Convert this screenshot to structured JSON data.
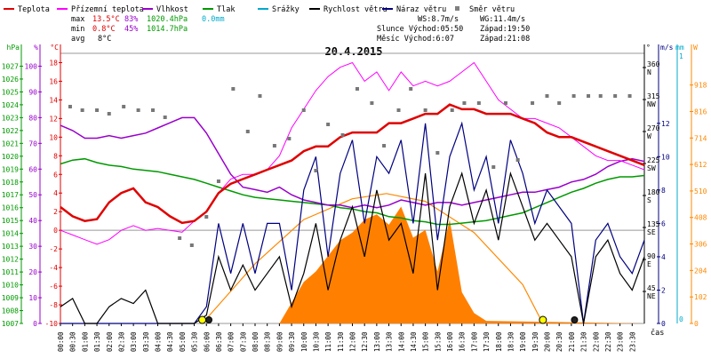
{
  "legend": [
    {
      "label": "Teplota",
      "color": "#e00000",
      "kind": "line"
    },
    {
      "label": "Přízemní teplota",
      "color": "#ff00ff",
      "kind": "line"
    },
    {
      "label": "Vlhkost",
      "color": "#9900cc",
      "kind": "line"
    },
    {
      "label": "Tlak",
      "color": "#009900",
      "kind": "line"
    },
    {
      "label": "Srážky",
      "color": "#00aacc",
      "kind": "line"
    },
    {
      "label": "Rychlost větru",
      "color": "#000000",
      "kind": "line"
    },
    {
      "label": "Náraz větru",
      "color": "#000080",
      "kind": "line"
    },
    {
      "label": "Směr větru",
      "color": "#808080",
      "kind": "dot"
    }
  ],
  "stats": {
    "max_label": "max",
    "max_temp": "13.5°C",
    "max_hum": "83%",
    "max_press": "1020.4hPa",
    "max_rain": "0.0mm",
    "min_label": "min",
    "min_temp": "0.8°C",
    "min_hum": "45%",
    "min_press": "1014.7hPa",
    "avg_label": "avg",
    "avg_temp": "8°C"
  },
  "wind_info": {
    "ws": "WS:8.7m/s",
    "wg": "WG:11.4m/s"
  },
  "sun_info": {
    "sunrise": "Slunce Východ:05:50",
    "sunset": "Západ:19:50"
  },
  "moon_info": {
    "moonrise": "Měsíc  Východ:6:07",
    "moonset": "Západ:21:08"
  },
  "chart_data": {
    "type": "line",
    "title": "20.4.2015",
    "xlabel": "čas",
    "x_ticks": [
      "00:00",
      "00:30",
      "01:00",
      "01:30",
      "02:00",
      "02:30",
      "03:00",
      "03:30",
      "04:00",
      "04:30",
      "05:00",
      "05:30",
      "06:00",
      "06:30",
      "07:00",
      "07:30",
      "08:00",
      "08:30",
      "09:00",
      "09:30",
      "10:00",
      "10:30",
      "11:00",
      "11:30",
      "12:00",
      "12:30",
      "13:00",
      "13:30",
      "14:00",
      "14:30",
      "15:00",
      "15:30",
      "16:00",
      "16:30",
      "17:00",
      "17:30",
      "18:00",
      "18:30",
      "19:00",
      "19:30",
      "20:00",
      "20:30",
      "21:00",
      "21:30",
      "22:00",
      "22:30",
      "23:00",
      "23:30"
    ],
    "axes": {
      "pressure": {
        "label": "hPa",
        "range": [
          1007,
          1028
        ],
        "ticks": [
          1007,
          1008,
          1009,
          1010,
          1011,
          1012,
          1013,
          1014,
          1015,
          1016,
          1017,
          1018,
          1019,
          1020,
          1021,
          1022,
          1023,
          1024,
          1025,
          1026,
          1027
        ]
      },
      "humidity": {
        "label": "%",
        "range": [
          0,
          105
        ],
        "ticks": [
          0,
          10,
          20,
          30,
          40,
          50,
          60,
          70,
          80,
          90,
          100
        ]
      },
      "temperature": {
        "label": "°C",
        "range": [
          -10,
          19
        ],
        "ticks": [
          -10,
          -8,
          -6,
          -4,
          -2,
          0,
          2,
          4,
          6,
          8,
          10,
          12,
          14,
          16,
          18
        ]
      },
      "direction": {
        "label": "°",
        "range": [
          0,
          380
        ],
        "ticks": [
          {
            "v": 45,
            "t": "NE"
          },
          {
            "v": 90,
            "t": "E"
          },
          {
            "v": 135,
            "t": "SE"
          },
          {
            "v": 180,
            "t": "S"
          },
          {
            "v": 225,
            "t": "SW"
          },
          {
            "v": 270,
            "t": "W"
          },
          {
            "v": 315,
            "t": "NW"
          },
          {
            "v": 360,
            "t": "N"
          }
        ]
      },
      "wind": {
        "label": "m/s",
        "range": [
          0,
          16.2
        ],
        "ticks": [
          0,
          2,
          4,
          6,
          8,
          10,
          12
        ]
      },
      "rain": {
        "label": "mm",
        "ticks": [
          0,
          1
        ]
      },
      "solar": {
        "label": "W",
        "range": [
          0,
          1040
        ],
        "ticks": [
          0,
          102,
          204,
          306,
          408,
          510,
          612,
          714,
          816,
          918
        ]
      }
    },
    "series": [
      {
        "name": "Teplota",
        "axis": "temperature",
        "x": [
          0,
          0.5,
          1,
          1.5,
          2,
          2.5,
          3,
          3.5,
          4,
          4.5,
          5,
          5.5,
          6,
          6.5,
          7,
          7.5,
          8,
          8.5,
          9,
          9.5,
          10,
          10.5,
          11,
          11.5,
          12,
          12.5,
          13,
          13.5,
          14,
          14.5,
          15,
          15.5,
          16,
          16.5,
          17,
          17.5,
          18,
          18.5,
          19,
          19.5,
          20,
          20.5,
          21,
          21.5,
          22,
          22.5,
          23,
          23.5,
          24
        ],
        "values": [
          2.5,
          1.5,
          1,
          1.2,
          3,
          4,
          4.5,
          3,
          2.5,
          1.5,
          0.8,
          1,
          2,
          4,
          5,
          5.5,
          6,
          6.5,
          7,
          7.5,
          8.5,
          9,
          9,
          10,
          10.5,
          10.5,
          10.5,
          11.5,
          11.5,
          12,
          12.5,
          12.5,
          13.5,
          13,
          13,
          12.5,
          12.5,
          12.5,
          12,
          11.5,
          10.5,
          10,
          10,
          9.5,
          9,
          8.5,
          8,
          7.5,
          7
        ]
      },
      {
        "name": "Přízemní teplota",
        "axis": "temperature",
        "x": [
          0,
          0.5,
          1,
          1.5,
          2,
          2.5,
          3,
          3.5,
          4,
          4.5,
          5,
          5.5,
          6,
          6.5,
          7,
          7.5,
          8,
          8.5,
          9,
          9.5,
          10,
          10.5,
          11,
          11.5,
          12,
          12.5,
          13,
          13.5,
          14,
          14.5,
          15,
          15.5,
          16,
          16.5,
          17,
          17.5,
          18,
          18.5,
          19,
          19.5,
          20,
          20.5,
          21,
          21.5,
          22,
          22.5,
          23,
          23.5,
          24
        ],
        "values": [
          0,
          -0.5,
          -1,
          -1.5,
          -1,
          0,
          0.5,
          0,
          0.2,
          0,
          -0.2,
          1,
          2,
          4,
          5.5,
          6,
          6,
          6.5,
          8,
          11,
          13,
          15,
          16.5,
          17.5,
          18,
          16,
          17,
          15,
          17,
          15.5,
          16,
          15.5,
          16,
          17,
          18,
          16,
          14,
          13,
          12,
          12,
          11.5,
          11,
          10,
          9,
          8,
          7.5,
          7.5,
          7,
          6.5
        ]
      },
      {
        "name": "Vlhkost",
        "axis": "humidity",
        "x": [
          0,
          0.5,
          1,
          1.5,
          2,
          2.5,
          3,
          3.5,
          4,
          4.5,
          5,
          5.5,
          6,
          6.5,
          7,
          7.5,
          8,
          8.5,
          9,
          9.5,
          10,
          10.5,
          11,
          11.5,
          12,
          12.5,
          13,
          13.5,
          14,
          14.5,
          15,
          15.5,
          16,
          16.5,
          17,
          17.5,
          18,
          18.5,
          19,
          19.5,
          20,
          20.5,
          21,
          21.5,
          22,
          22.5,
          23,
          23.5,
          24
        ],
        "values": [
          77,
          75,
          72,
          72,
          73,
          72,
          73,
          74,
          76,
          78,
          80,
          80,
          74,
          66,
          58,
          53,
          52,
          51,
          53,
          50,
          48,
          47,
          46,
          46,
          45,
          46,
          45,
          46,
          48,
          47,
          46,
          47,
          47,
          46,
          47,
          48,
          49,
          50,
          51,
          51,
          52,
          53,
          55,
          56,
          58,
          61,
          63,
          64,
          63
        ]
      },
      {
        "name": "Tlak",
        "axis": "pressure",
        "x": [
          0,
          0.5,
          1,
          1.5,
          2,
          2.5,
          3,
          3.5,
          4,
          4.5,
          5,
          5.5,
          6,
          6.5,
          7,
          7.5,
          8,
          8.5,
          9,
          9.5,
          10,
          10.5,
          11,
          11.5,
          12,
          12.5,
          13,
          13.5,
          14,
          14.5,
          15,
          15.5,
          16,
          16.5,
          17,
          17.5,
          18,
          18.5,
          19,
          19.5,
          20,
          20.5,
          21,
          21.5,
          22,
          22.5,
          23,
          23.5,
          24
        ],
        "values": [
          1019.4,
          1019.7,
          1019.8,
          1019.5,
          1019.3,
          1019.2,
          1019.0,
          1018.9,
          1018.8,
          1018.6,
          1018.4,
          1018.2,
          1017.9,
          1017.6,
          1017.3,
          1017.0,
          1016.8,
          1016.7,
          1016.6,
          1016.5,
          1016.4,
          1016.3,
          1016.2,
          1016.0,
          1015.9,
          1015.7,
          1015.6,
          1015.3,
          1015.2,
          1015.0,
          1014.9,
          1014.7,
          1014.7,
          1014.8,
          1014.9,
          1015.0,
          1015.2,
          1015.4,
          1015.6,
          1016.0,
          1016.4,
          1016.8,
          1017.2,
          1017.5,
          1017.9,
          1018.2,
          1018.4,
          1018.4,
          1018.5
        ]
      },
      {
        "name": "Směr větru",
        "axis": "direction",
        "x": [
          0.4,
          0.9,
          1.5,
          2.0,
          2.6,
          3.2,
          3.8,
          4.3,
          4.9,
          5.4,
          6.0,
          6.5,
          7.1,
          7.7,
          8.2,
          8.8,
          9.4,
          10.0,
          10.5,
          11.0,
          11.6,
          12.2,
          12.8,
          13.3,
          13.9,
          14.4,
          15.0,
          15.5,
          16.1,
          16.6,
          17.2,
          17.8,
          18.3,
          18.8,
          19.4,
          20.0,
          20.5,
          21.1,
          21.7,
          22.2,
          22.8,
          23.4
        ],
        "values": [
          305,
          300,
          300,
          295,
          305,
          300,
          300,
          290,
          120,
          110,
          150,
          200,
          330,
          270,
          320,
          250,
          260,
          300,
          215,
          280,
          265,
          330,
          310,
          250,
          300,
          330,
          300,
          240,
          300,
          310,
          310,
          220,
          310,
          230,
          310,
          320,
          310,
          320,
          320,
          320,
          320,
          320
        ]
      },
      {
        "name": "Rychlost větru",
        "axis": "wind",
        "x": [
          0,
          0.5,
          1,
          1.5,
          2,
          2.5,
          3,
          3.5,
          4,
          4.5,
          5,
          5.5,
          6,
          6.5,
          7,
          7.5,
          8,
          8.5,
          9,
          9.5,
          10,
          10.5,
          11,
          11.5,
          12,
          12.5,
          13,
          13.5,
          14,
          14.5,
          15,
          15.5,
          16,
          16.5,
          17,
          17.5,
          18,
          18.5,
          19,
          19.5,
          20,
          20.5,
          21,
          21.5,
          22,
          22.5,
          23,
          23.5,
          24
        ],
        "values": [
          1.0,
          1.5,
          0,
          0,
          1,
          1.5,
          1.2,
          2,
          0,
          0,
          0,
          0,
          0.5,
          4,
          2,
          3.5,
          2,
          3,
          4,
          1,
          3,
          6,
          2,
          5,
          7,
          4,
          8,
          5,
          6,
          3,
          9,
          2,
          7,
          9,
          6,
          8,
          5,
          9,
          7,
          5,
          6,
          5,
          4,
          0,
          4,
          5,
          3,
          2,
          4
        ]
      },
      {
        "name": "Náraz větru",
        "axis": "wind",
        "x": [
          0,
          0.5,
          1,
          1.5,
          2,
          2.5,
          3,
          3.5,
          4,
          4.5,
          5,
          5.5,
          6,
          6.5,
          7,
          7.5,
          8,
          8.5,
          9,
          9.5,
          10,
          10.5,
          11,
          11.5,
          12,
          12.5,
          13,
          13.5,
          14,
          14.5,
          15,
          15.5,
          16,
          16.5,
          17,
          17.5,
          18,
          18.5,
          19,
          19.5,
          20,
          20.5,
          21,
          21.5,
          22,
          22.5,
          23,
          23.5,
          24
        ],
        "values": [
          0,
          0,
          0,
          0,
          0,
          0,
          0,
          0,
          0,
          0,
          0,
          0,
          1,
          6,
          3,
          6,
          3,
          6,
          6,
          2,
          8,
          10,
          4,
          9,
          11,
          6,
          10,
          9,
          11,
          6,
          12,
          5,
          10,
          12,
          8,
          10,
          6,
          11,
          9,
          6,
          8,
          7,
          6,
          0,
          5,
          6,
          4,
          3,
          5
        ]
      },
      {
        "name": "Solární radiace",
        "axis": "solar",
        "x": [
          0,
          9.0,
          9.5,
          10,
          10.5,
          11,
          11.5,
          12,
          12.5,
          13,
          13.5,
          14,
          14.5,
          15,
          15.5,
          16,
          16.5,
          17,
          17.5,
          24
        ],
        "values": [
          0,
          0,
          80,
          160,
          200,
          260,
          320,
          350,
          400,
          420,
          380,
          450,
          330,
          360,
          200,
          400,
          120,
          40,
          10,
          0
        ]
      },
      {
        "name": "Teoretická radiace",
        "axis": "solar",
        "x": [
          5.83,
          8,
          10,
          12,
          13.4,
          15,
          17,
          19,
          19.83
        ],
        "values": [
          0,
          230,
          400,
          480,
          500,
          470,
          350,
          150,
          0
        ]
      }
    ]
  }
}
